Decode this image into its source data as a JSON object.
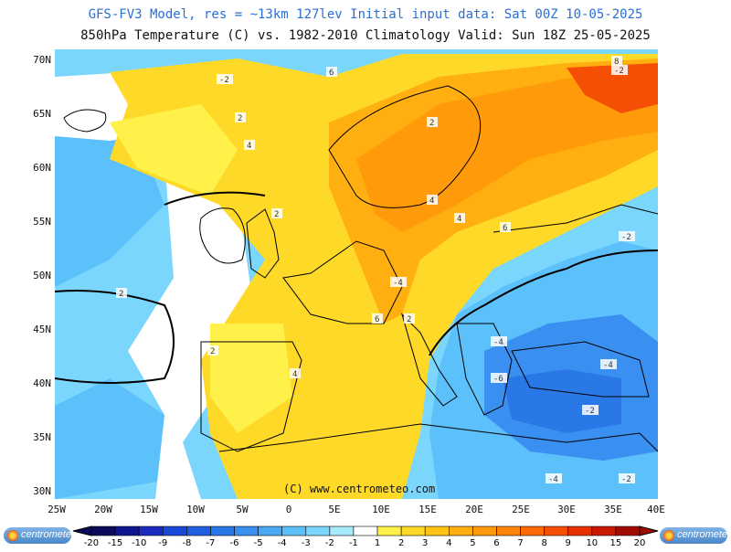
{
  "header": {
    "line1": "GFS-FV3 Model, res = ~13km 127lev   Initial input data: Sat 00Z 10-05-2025",
    "line2": "850hPa Temperature (C) vs. 1982-2010 Climatology  Valid: Sun 18Z 25-05-2025"
  },
  "map": {
    "lat_labels": [
      "70N",
      "65N",
      "60N",
      "55N",
      "50N",
      "45N",
      "40N",
      "35N",
      "30N"
    ],
    "lon_labels": [
      "25W",
      "20W",
      "15W",
      "10W",
      "5W",
      "0",
      "5E",
      "10E",
      "15E",
      "20E",
      "25E",
      "30E",
      "35E",
      "40E"
    ],
    "copyright": "(C) www.centrometeo.com",
    "contour_labels": [
      "-2",
      "2",
      "4",
      "6",
      "8",
      "-2",
      "2",
      "4",
      "2",
      "4",
      "6",
      "-4",
      "-2",
      "-4",
      "-6",
      "-4",
      "-2",
      "-4",
      "-2",
      "2",
      "2",
      "4",
      "6",
      "2"
    ]
  },
  "colorbar": {
    "labels": [
      "-20",
      "-15",
      "-10",
      "-9",
      "-8",
      "-7",
      "-6",
      "-5",
      "-4",
      "-3",
      "-2",
      "-1",
      "1",
      "2",
      "3",
      "4",
      "5",
      "6",
      "7",
      "8",
      "9",
      "10",
      "15",
      "20"
    ],
    "colors": [
      "#0a0a5a",
      "#101590",
      "#1a2cc0",
      "#1c48d8",
      "#2060e0",
      "#2a78e8",
      "#3a90f0",
      "#4aa8f5",
      "#5cc0fa",
      "#7ad6fc",
      "#a8eafd",
      "#ffffff",
      "#fff04a",
      "#ffd928",
      "#ffc515",
      "#ffb010",
      "#ff9a0a",
      "#ff8408",
      "#ff6a05",
      "#f54f05",
      "#e83000",
      "#c81800",
      "#a00a00"
    ],
    "brand": "centrometeo"
  },
  "colors": {
    "sea_cold": "#5fd0f5",
    "land_warm": "#ffd928",
    "hot": "#ff6a05"
  }
}
